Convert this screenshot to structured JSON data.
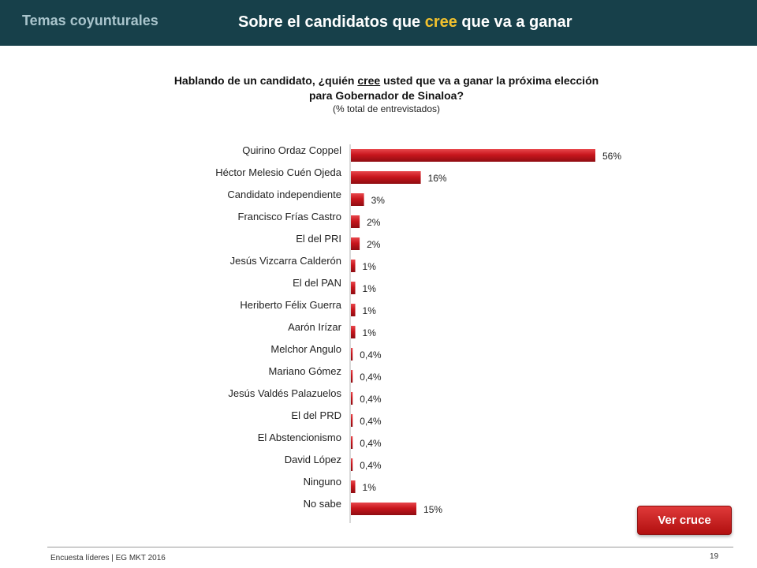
{
  "header": {
    "section": "Temas coyunturales",
    "title_part1": "Sobre el candidatos que ",
    "title_highlight": "cree",
    "title_part2": " que va a ganar"
  },
  "chart_data": {
    "type": "bar",
    "orientation": "horizontal",
    "title_part1": "Hablando de un candidato, ¿quién ",
    "title_underlined": "cree",
    "title_part2": " usted que va a ganar la próxima elección",
    "title_line2": "para Gobernador de Sinaloa?",
    "subtitle": "(% total de entrevistados)",
    "categories": [
      "Quirino Ordaz Coppel",
      "Héctor Melesio Cuén Ojeda",
      "Candidato independiente",
      "Francisco Frías Castro",
      "El del PRI",
      "Jesús Vizcarra Calderón",
      "El del PAN",
      "Heriberto Félix Guerra",
      "Aarón Irízar",
      "Melchor Angulo",
      "Mariano Gómez",
      "Jesús Valdés Palazuelos",
      "El del PRD",
      "El Abstencionismo",
      "David López",
      "Ninguno",
      "No sabe"
    ],
    "values": [
      56,
      16,
      3,
      2,
      2,
      1,
      1,
      1,
      1,
      0.4,
      0.4,
      0.4,
      0.4,
      0.4,
      0.4,
      1,
      15
    ],
    "data_labels": [
      "56%",
      "16%",
      "3%",
      "2%",
      "2%",
      "1%",
      "1%",
      "1%",
      "1%",
      "0,4%",
      "0,4%",
      "0,4%",
      "0,4%",
      "0,4%",
      "0,4%",
      "1%",
      "15%"
    ],
    "bar_color": "#c8161d",
    "xlim": [
      0,
      56
    ]
  },
  "button": {
    "label": "Ver cruce"
  },
  "footer": {
    "source": "Encuesta líderes | EG MKT 2016",
    "page": "19"
  }
}
